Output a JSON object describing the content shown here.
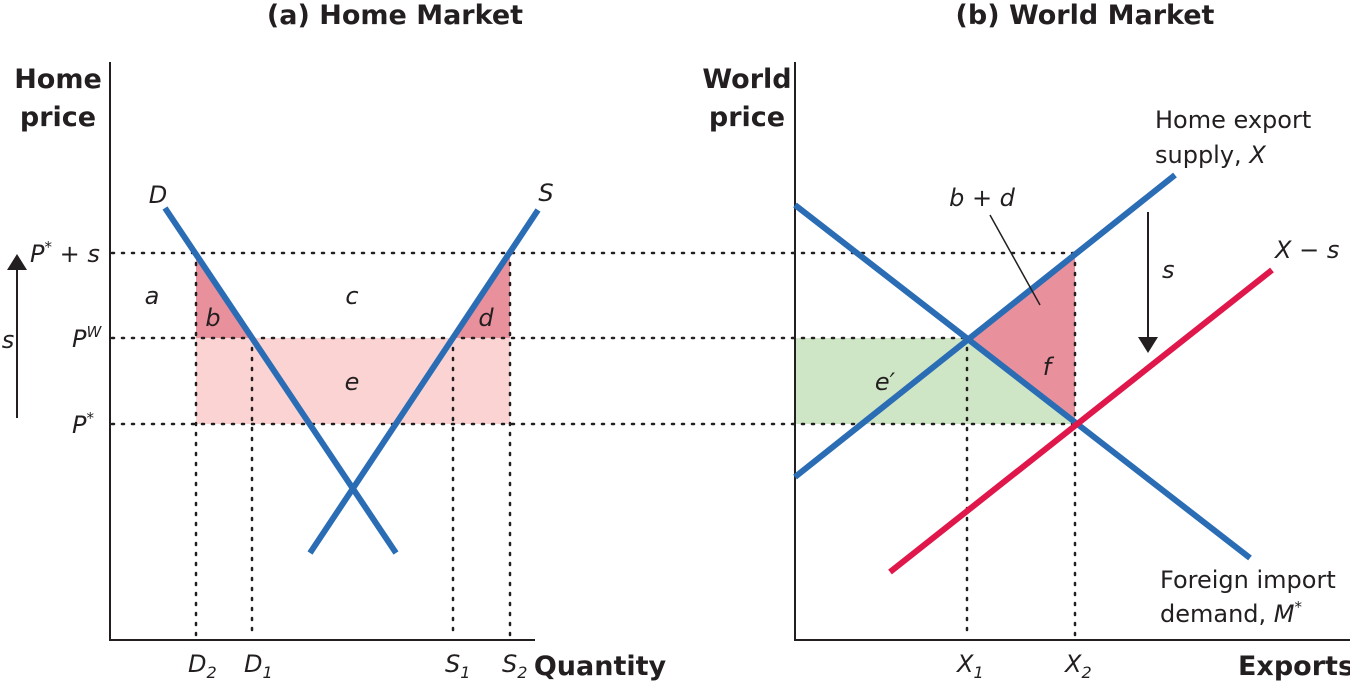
{
  "panels": [
    {
      "title": "(a) Home Market",
      "y_axis_label": [
        "Home",
        "price"
      ],
      "x_axis_label": "Quantity",
      "price_labels": [
        {
          "var": "P",
          "sup": "*",
          "rest": " + s"
        },
        {
          "var": "P",
          "sup": "W"
        },
        {
          "var": "P",
          "sup": "*"
        }
      ],
      "quantity_labels": [
        {
          "var": "D",
          "sub": "2"
        },
        {
          "var": "D",
          "sub": "1"
        },
        {
          "var": "S",
          "sub": "1"
        },
        {
          "var": "S",
          "sub": "2"
        }
      ],
      "curve_labels": [
        "D",
        "S"
      ],
      "area_labels": [
        "a",
        "b",
        "c",
        "d",
        "e"
      ],
      "arrow_label": "s"
    },
    {
      "title": "(b) World Market",
      "y_axis_label": [
        "World",
        "price"
      ],
      "x_axis_label": "Exports",
      "quantity_labels": [
        {
          "var": "X",
          "sub": "1"
        },
        {
          "var": "X",
          "sub": "2"
        }
      ],
      "supply_label": [
        "Home export",
        {
          "text": "supply, ",
          "var": "X"
        }
      ],
      "shifted_label": {
        "var": "X",
        "rest": " − s"
      },
      "demand_label": [
        "Foreign import",
        {
          "text": "demand, ",
          "var": "M",
          "sup": "*"
        }
      ],
      "area_labels": [
        "b + d",
        "e′",
        "f"
      ],
      "arrow_label": "s"
    }
  ]
}
